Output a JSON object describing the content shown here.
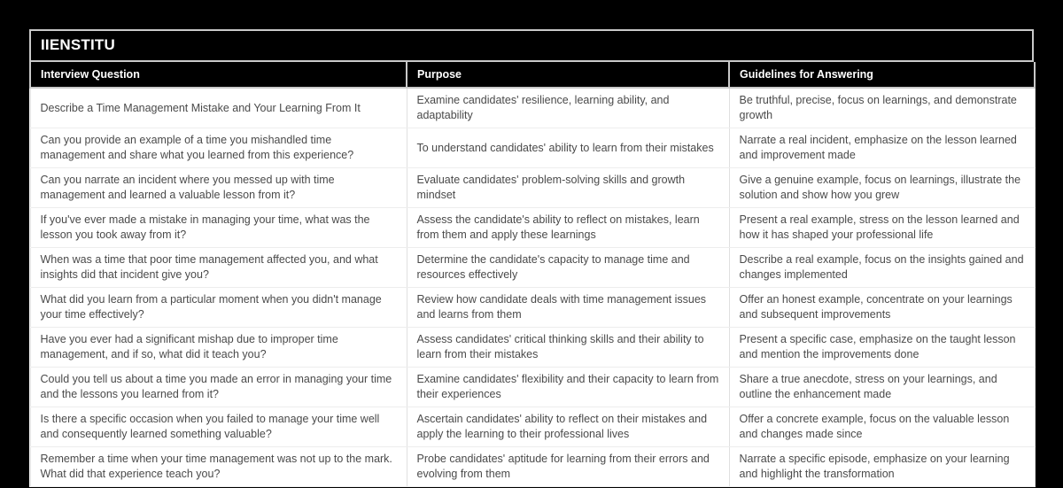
{
  "header": {
    "title": "IIENSTITU"
  },
  "table": {
    "columns": [
      "Interview Question",
      "Purpose",
      "Guidelines for Answering"
    ],
    "rows": [
      {
        "question": "Describe a Time Management Mistake and Your Learning From It",
        "purpose": "Examine candidates' resilience, learning ability, and adaptability",
        "guidelines": "Be truthful, precise, focus on learnings, and demonstrate growth"
      },
      {
        "question": "Can you provide an example of a time you mishandled time management and share what you learned from this experience?",
        "purpose": "To understand candidates' ability to learn from their mistakes",
        "guidelines": "Narrate a real incident, emphasize on the lesson learned and improvement made"
      },
      {
        "question": "Can you narrate an incident where you messed up with time management and learned a valuable lesson from it?",
        "purpose": "Evaluate candidates' problem-solving skills and growth mindset",
        "guidelines": "Give a genuine example, focus on learnings, illustrate the solution and show how you grew"
      },
      {
        "question": "If you've ever made a mistake in managing your time, what was the lesson you took away from it?",
        "purpose": "Assess the candidate's ability to reflect on mistakes, learn from them and apply these learnings",
        "guidelines": "Present a real example, stress on the lesson learned and how it has shaped your professional life"
      },
      {
        "question": "When was a time that poor time management affected you, and what insights did that incident give you?",
        "purpose": "Determine the candidate's capacity to manage time and resources effectively",
        "guidelines": "Describe a real example, focus on the insights gained and changes implemented"
      },
      {
        "question": "What did you learn from a particular moment when you didn't manage your time effectively?",
        "purpose": "Review how candidate deals with time management issues and learns from them",
        "guidelines": "Offer an honest example, concentrate on your learnings and subsequent improvements"
      },
      {
        "question": "Have you ever had a significant mishap due to improper time management, and if so, what did it teach you?",
        "purpose": "Assess candidates' critical thinking skills and their ability to learn from their mistakes",
        "guidelines": "Present a specific case, emphasize on the taught lesson and mention the improvements done"
      },
      {
        "question": "Could you tell us about a time you made an error in managing your time and the lessons you learned from it?",
        "purpose": "Examine candidates' flexibility and their capacity to learn from their experiences",
        "guidelines": "Share a true anecdote, stress on your learnings, and outline the enhancement made"
      },
      {
        "question": "Is there a specific occasion when you failed to manage your time well and consequently learned something valuable?",
        "purpose": "Ascertain candidates' ability to reflect on their mistakes and apply the learning to their professional lives",
        "guidelines": "Offer a concrete example, focus on the valuable lesson and changes made since"
      },
      {
        "question": "Remember a time when your time management was not up to the mark. What did that experience teach you?",
        "purpose": "Probe candidates' aptitude for learning from their errors and evolving from them",
        "guidelines": "Narrate a specific episode, emphasize on your learning and highlight the transformation"
      }
    ]
  },
  "colors": {
    "page_background": "#000000",
    "header_background": "#000000",
    "header_text": "#ffffff",
    "body_text": "#4a4a4a",
    "header_border": "#c9c9c9",
    "cell_border_vertical": "#e0e0e0",
    "cell_border_horizontal": "#ededed"
  }
}
